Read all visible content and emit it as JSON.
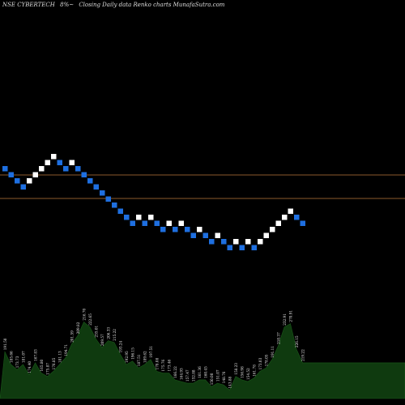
{
  "header": {
    "symbol": "NSE CYBERTECH",
    "change": "8%~",
    "chart_name": "Closing Daily data Renko charts MunafaSutra.com"
  },
  "chart_data": {
    "type": "renko",
    "up_color": "#ffffff",
    "down_color": "#1e6fe0",
    "reference_line_color": "#8b5a2b",
    "volume_color": "#0f3a0f",
    "bricks": [
      "down",
      "down",
      "down",
      "down",
      "up",
      "up",
      "up",
      "up",
      "up",
      "down",
      "down",
      "up",
      "down",
      "down",
      "down",
      "down",
      "down",
      "down",
      "down",
      "down",
      "down",
      "down",
      "up",
      "down",
      "up",
      "down",
      "down",
      "up",
      "down",
      "up",
      "down",
      "down",
      "up",
      "down",
      "down",
      "up",
      "down",
      "down",
      "up",
      "down",
      "up",
      "down",
      "up",
      "up",
      "up",
      "up",
      "up",
      "up",
      "down",
      "down"
    ],
    "volume_labels": [
      "191.50",
      "185.66",
      "173.73",
      "181.07",
      "174.40",
      "167.83",
      "165.80",
      "175.87",
      "176.85",
      "181.13",
      "194.71",
      "201.59",
      "209.82",
      "216.70",
      "222.65",
      "235.01",
      "209.57",
      "206.33",
      "215.22",
      "193.24",
      "192.95",
      "196.15",
      "187.51",
      "189.62",
      "197.51",
      "178.08",
      "175.76",
      "173.46",
      "166.22",
      "164.93",
      "157.47",
      "152.88",
      "161.36",
      "160.45",
      "150.00",
      "151.07",
      "148.76",
      "143.88",
      "158.23",
      "156.98",
      "154.52",
      "161.78",
      "173.03",
      "178.05",
      "191.11",
      "210.37",
      "232.91",
      "270.91",
      "226.15",
      "219.22"
    ],
    "volume_values": [
      55,
      40,
      34,
      40,
      28,
      42,
      30,
      26,
      32,
      40,
      48,
      64,
      74,
      90,
      84,
      70,
      60,
      68,
      66,
      52,
      40,
      44,
      36,
      40,
      46,
      32,
      30,
      30,
      22,
      20,
      18,
      18,
      22,
      22,
      14,
      18,
      16,
      10,
      26,
      22,
      20,
      24,
      32,
      36,
      46,
      62,
      84,
      88,
      58,
      42
    ]
  }
}
